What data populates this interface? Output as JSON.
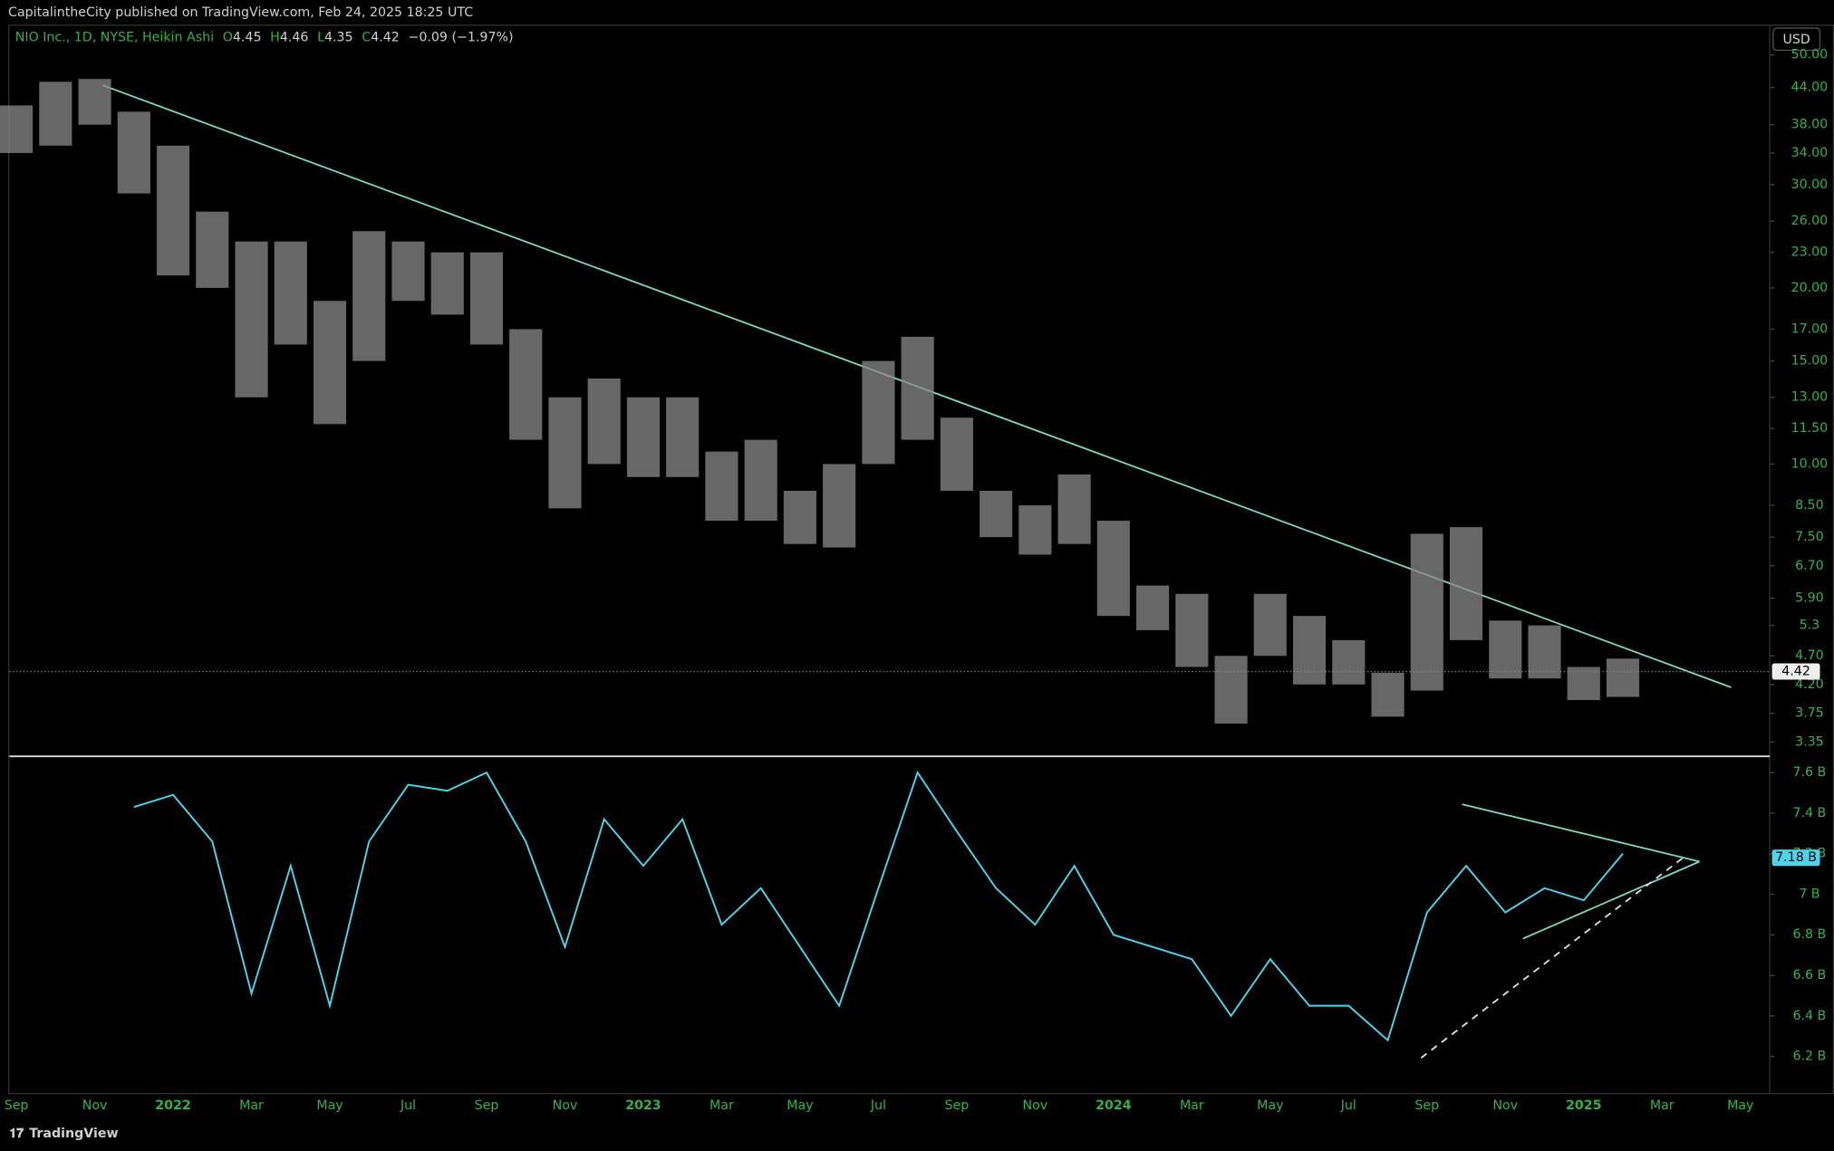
{
  "header": {
    "publisher": "CapitalintheCity published on TradingView.com, Feb 24, 2025 18:25 UTC",
    "currency": "USD",
    "footer": "TradingView"
  },
  "x_axis": {
    "ticks": [
      "Sep",
      "Nov",
      "2022",
      "Mar",
      "May",
      "Jul",
      "Sep",
      "Nov",
      "2023",
      "Mar",
      "May",
      "Jul",
      "Sep",
      "Nov",
      "2024",
      "Mar",
      "May",
      "Jul",
      "Sep",
      "Nov",
      "2025",
      "Mar",
      "May"
    ]
  },
  "chart_data": [
    {
      "type": "range-bar",
      "title": "NIO Inc., 1D, NYSE, Heikin Ashi",
      "color": "#8a8a8a",
      "log_scale": true,
      "ohlc": [
        {
          "label": "O",
          "value": 4.45
        },
        {
          "label": "H",
          "value": 4.46
        },
        {
          "label": "L",
          "value": 4.35
        },
        {
          "label": "C",
          "value": 4.42
        }
      ],
      "change": "−0.09 (−1.97%)",
      "high": [
        41,
        45,
        45.5,
        40,
        35,
        27,
        24,
        24,
        19,
        25,
        24,
        23,
        23,
        17,
        13,
        14,
        13,
        13,
        10.5,
        11,
        9,
        10,
        15,
        16.5,
        12,
        9,
        8.5,
        9.6,
        8,
        6.2,
        6,
        4.7,
        6,
        5.5,
        5,
        4.4,
        7.6,
        7.8,
        5.4,
        5.3,
        4.5,
        4.65
      ],
      "low": [
        34,
        35,
        38,
        29,
        21,
        20,
        13,
        16,
        11.7,
        15,
        19,
        18,
        16,
        11,
        8.4,
        10,
        9.5,
        9.5,
        8,
        8,
        7.3,
        7.2,
        10,
        11,
        9,
        7.5,
        7,
        7.3,
        5.5,
        5.2,
        4.5,
        3.6,
        4.7,
        4.2,
        4.2,
        3.7,
        4.1,
        5,
        4.3,
        4.3,
        3.95,
        4.0
      ],
      "last": 4.42,
      "ylim": [
        3.18,
        56.1
      ],
      "yticks": [
        3.35,
        3.75,
        {
          "value": 4.2,
          "label": "4.20"
        },
        {
          "value": 4.7,
          "label": "4.70"
        },
        5.3,
        {
          "value": 5.9,
          "label": "5.90"
        },
        {
          "value": 6.7,
          "label": "6.70"
        },
        {
          "value": 7.5,
          "label": "7.50"
        },
        {
          "value": 8.5,
          "label": "8.50"
        },
        {
          "value": 10,
          "label": "10.00"
        },
        {
          "value": 11.5,
          "label": "11.50"
        },
        {
          "value": 13,
          "label": "13.00"
        },
        {
          "value": 15,
          "label": "15.00"
        },
        {
          "value": 17,
          "label": "17.00"
        },
        {
          "value": 20,
          "label": "20.00"
        },
        {
          "value": 23,
          "label": "23.00"
        },
        {
          "value": 26,
          "label": "26.00"
        },
        {
          "value": 30,
          "label": "30.00"
        },
        {
          "value": 34,
          "label": "34.00"
        },
        {
          "value": 38,
          "label": "38.00"
        },
        {
          "value": 44,
          "label": "44.00"
        },
        {
          "value": 50,
          "label": "50.00"
        }
      ]
    },
    {
      "type": "line",
      "color": "#4fd3ea",
      "values": [
        null,
        null,
        null,
        7.43,
        7.49,
        7.26,
        6.51,
        7.14,
        6.45,
        7.26,
        7.54,
        7.51,
        7.6,
        7.26,
        6.74,
        7.37,
        7.14,
        7.37,
        6.85,
        7.03,
        6.74,
        6.45,
        7.03,
        7.6,
        7.31,
        7.03,
        6.85,
        7.14,
        6.8,
        6.74,
        6.68,
        6.4,
        6.68,
        6.45,
        6.45,
        6.28,
        6.91,
        7.14,
        6.91,
        7.03,
        6.97,
        7.2
      ],
      "last": {
        "value": 7.18,
        "label": "7.18 B"
      },
      "ylim": [
        6.02,
        7.68
      ],
      "yticks": [
        {
          "value": 6.2,
          "label": "6.2 B"
        },
        {
          "value": 6.4,
          "label": "6.4 B"
        },
        {
          "value": 6.6,
          "label": "6.6 B"
        },
        {
          "value": 6.8,
          "label": "6.8 B"
        },
        {
          "value": 7,
          "label": "7 B"
        },
        {
          "value": 7.2,
          "label": "7.2 B"
        },
        {
          "value": 7.4,
          "label": "7.4 B"
        },
        {
          "value": 7.6,
          "label": "7.6 B"
        }
      ]
    }
  ]
}
